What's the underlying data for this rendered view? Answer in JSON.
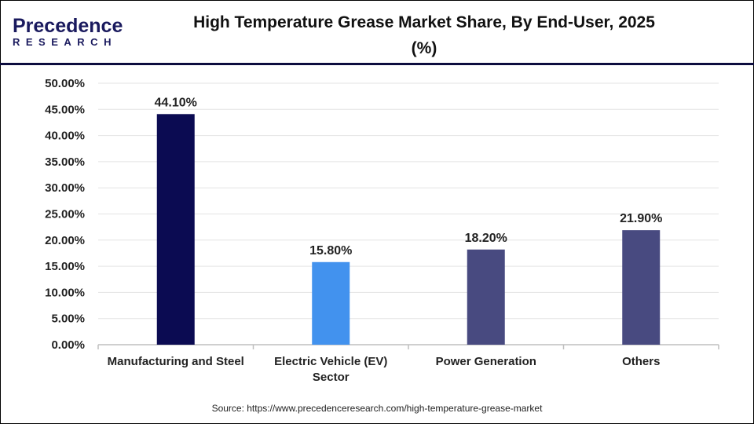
{
  "logo": {
    "line1": "Precedence",
    "line2": "RESEARCH"
  },
  "title": "High Temperature Grease Market Share, By End-User, 2025 (%)",
  "source": "Source: https://www.precedenceresearch.com/high-temperature-grease-market",
  "chart_data": {
    "type": "bar",
    "title": "High Temperature Grease Market Share, By End-User, 2025 (%)",
    "categories": [
      [
        "Manufacturing and Steel"
      ],
      [
        "Electric Vehicle (EV)",
        "Sector"
      ],
      [
        "Power Generation"
      ],
      [
        "Others"
      ]
    ],
    "values": [
      44.1,
      15.8,
      18.2,
      21.9
    ],
    "data_labels": [
      "44.10%",
      "15.80%",
      "18.20%",
      "21.90%"
    ],
    "colors": [
      "#0b0b52",
      "#4292ee",
      "#484a80",
      "#484a80"
    ],
    "ylim": [
      0,
      50
    ],
    "yticks": [
      "0.00%",
      "5.00%",
      "10.00%",
      "15.00%",
      "20.00%",
      "25.00%",
      "30.00%",
      "35.00%",
      "40.00%",
      "45.00%",
      "50.00%"
    ],
    "grid": true,
    "legend": "none"
  }
}
